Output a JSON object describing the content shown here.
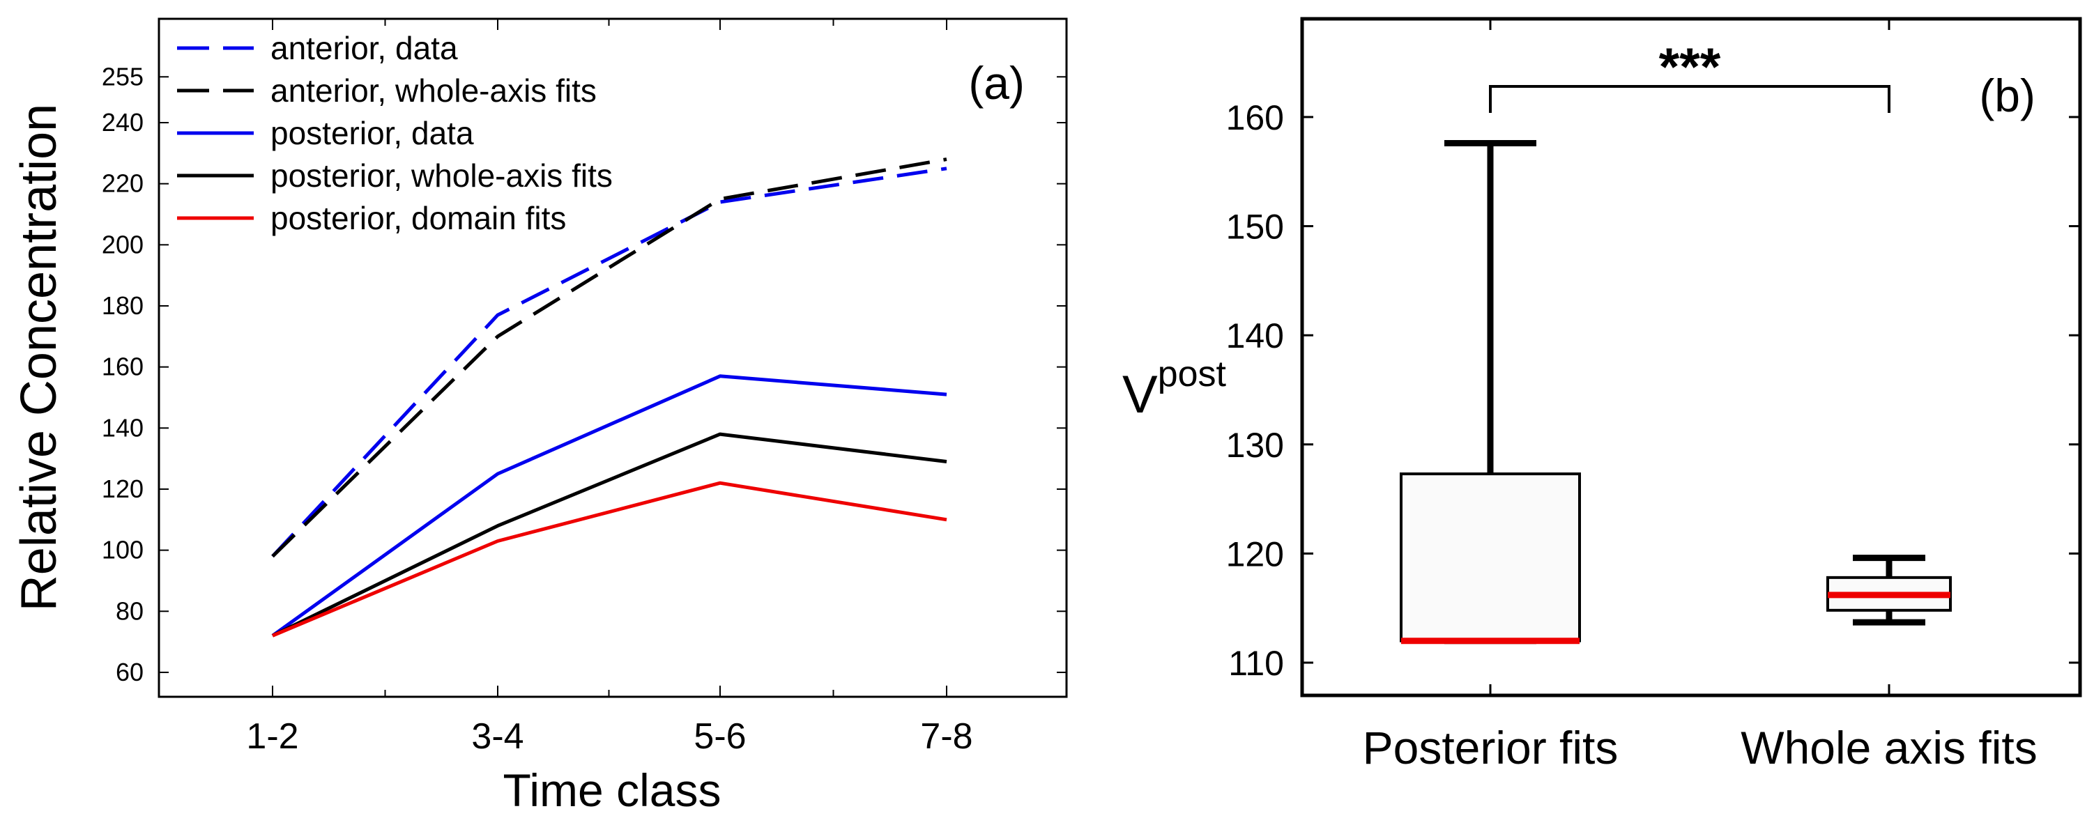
{
  "chart_data": [
    {
      "panel": "(a)",
      "type": "line",
      "xlabel": "Time class",
      "ylabel": "Relative Concentration",
      "categories": [
        "1-2",
        "3-4",
        "5-6",
        "7-8"
      ],
      "yticks": [
        60,
        80,
        100,
        120,
        140,
        160,
        180,
        200,
        220,
        240,
        255
      ],
      "ylim": [
        52,
        274
      ],
      "legend_position": "top-left",
      "series": [
        {
          "name": "anterior, data",
          "color": "#0000ee",
          "dash": true,
          "values": [
            98,
            177,
            214,
            225
          ]
        },
        {
          "name": "anterior, whole-axis fits",
          "color": "#000000",
          "dash": true,
          "values": [
            98,
            170,
            215,
            228
          ]
        },
        {
          "name": "posterior, data",
          "color": "#0000ee",
          "dash": false,
          "values": [
            72,
            125,
            157,
            151
          ]
        },
        {
          "name": "posterior, whole-axis fits",
          "color": "#000000",
          "dash": false,
          "values": [
            72,
            108,
            138,
            129
          ]
        },
        {
          "name": "posterior, domain fits",
          "color": "#ee0000",
          "dash": false,
          "values": [
            72,
            103,
            122,
            110
          ]
        }
      ]
    },
    {
      "panel": "(b)",
      "type": "box",
      "ylabel": "V",
      "ylabel_superscript": "post",
      "categories": [
        "Posterior fits",
        "Whole axis fits"
      ],
      "yticks": [
        110,
        120,
        130,
        140,
        150,
        160
      ],
      "ylim": [
        107,
        169
      ],
      "significance": "***",
      "median_color": "#ee0000",
      "boxes": [
        {
          "name": "Posterior fits",
          "min": 112,
          "q1": 112,
          "median": 112,
          "q3": 127.3,
          "max": 157.6
        },
        {
          "name": "Whole axis fits",
          "min": 113.7,
          "q1": 114.8,
          "median": 116.2,
          "q3": 117.8,
          "max": 119.6
        }
      ]
    }
  ]
}
